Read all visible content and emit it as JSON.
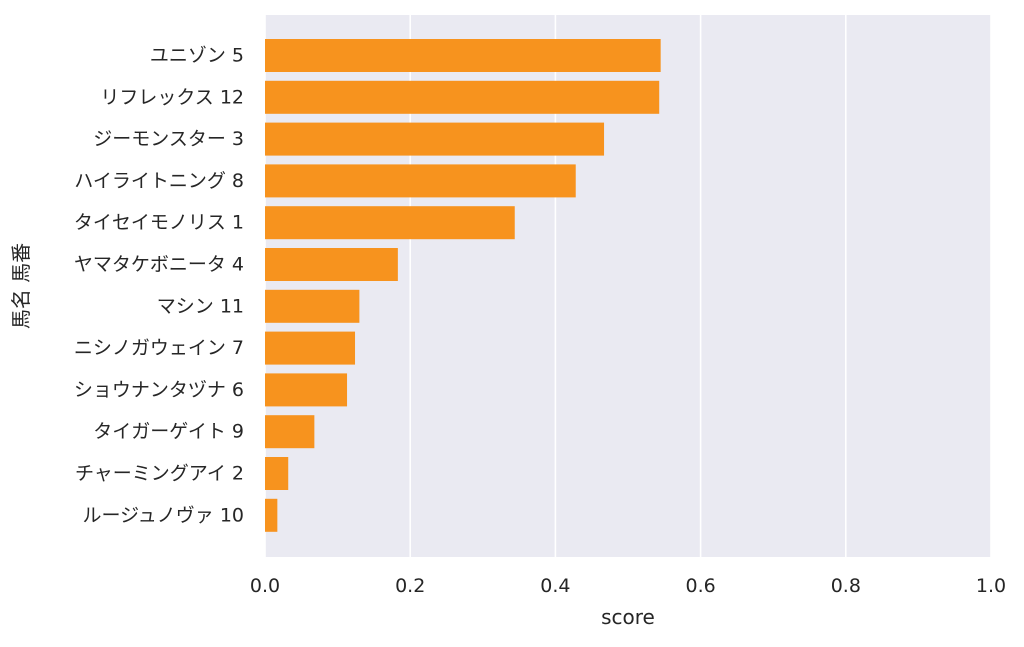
{
  "chart_data": {
    "type": "bar",
    "orientation": "horizontal",
    "xlabel": "score",
    "ylabel": "馬名 馬番",
    "xlim": [
      0.0,
      1.0
    ],
    "xticks": [
      "0.0",
      "0.2",
      "0.4",
      "0.6",
      "0.8",
      "1.0"
    ],
    "xtick_values": [
      0.0,
      0.2,
      0.4,
      0.6,
      0.8,
      1.0
    ],
    "grid": true,
    "categories": [
      "ユニゾン 5",
      "リフレックス 12",
      "ジーモンスター 3",
      "ハイライトニング 8",
      "タイセイモノリス 1",
      "ヤマタケボニータ 4",
      "マシン 11",
      "ニシノガウェイン 7",
      "ショウナンタヅナ 6",
      "タイガーゲイト 9",
      "チャーミングアイ 2",
      "ルージュノヴァ 10"
    ],
    "values": [
      0.545,
      0.543,
      0.467,
      0.428,
      0.344,
      0.183,
      0.13,
      0.124,
      0.113,
      0.068,
      0.032,
      0.017
    ]
  },
  "colors": {
    "bar": "#f7931e",
    "plot_background": "#eaeaf2",
    "grid": "#ffffff",
    "text": "#262626"
  }
}
